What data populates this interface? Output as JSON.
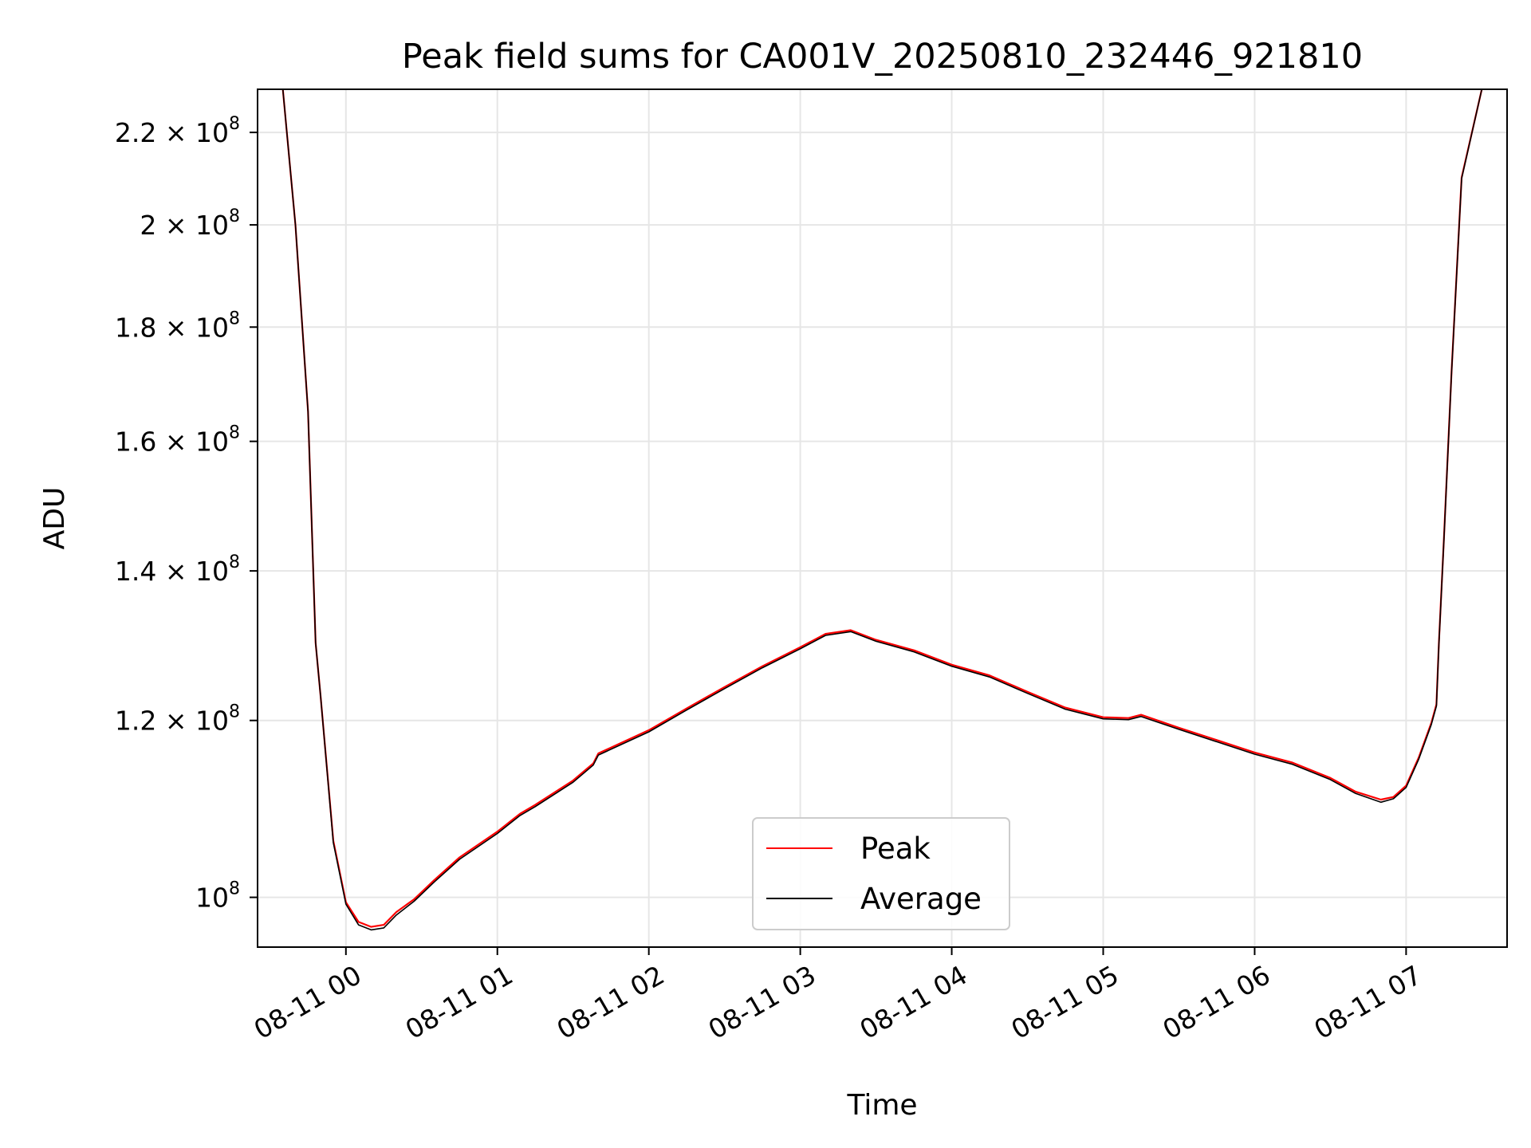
{
  "chart_data": {
    "type": "line",
    "title": "Peak field sums for CA001V_20250810_232446_921810",
    "xlabel": "Time",
    "ylabel": "ADU",
    "y_scale": "log",
    "grid": true,
    "legend_position": "lower-center",
    "x_range": [
      "2025-08-10 23:25",
      "2025-08-11 07:40"
    ],
    "ylim": [
      95000000,
      230000000
    ],
    "x_ticks": [
      "08-11 00",
      "08-11 01",
      "08-11 02",
      "08-11 03",
      "08-11 04",
      "08-11 05",
      "08-11 06",
      "08-11 07"
    ],
    "x_tick_times": [
      "2025-08-11 00:00",
      "2025-08-11 01:00",
      "2025-08-11 02:00",
      "2025-08-11 03:00",
      "2025-08-11 04:00",
      "2025-08-11 05:00",
      "2025-08-11 06:00",
      "2025-08-11 07:00"
    ],
    "y_ticks": [
      {
        "value": 100000000,
        "mantissa": "",
        "exp": "8"
      },
      {
        "value": 120000000,
        "mantissa": "1.2",
        "exp": "8"
      },
      {
        "value": 140000000,
        "mantissa": "1.4",
        "exp": "8"
      },
      {
        "value": 160000000,
        "mantissa": "1.6",
        "exp": "8"
      },
      {
        "value": 180000000,
        "mantissa": "1.8",
        "exp": "8"
      },
      {
        "value": 200000000,
        "mantissa": "2",
        "exp": "8"
      },
      {
        "value": 220000000,
        "mantissa": "2.2",
        "exp": "8"
      }
    ],
    "series": [
      {
        "name": "Peak",
        "color": "#ff0000",
        "x": [
          "2025-08-10 23:35",
          "2025-08-10 23:40",
          "2025-08-10 23:45",
          "2025-08-10 23:48",
          "2025-08-10 23:50",
          "2025-08-10 23:55",
          "2025-08-11 00:00",
          "2025-08-11 00:05",
          "2025-08-11 00:10",
          "2025-08-11 00:15",
          "2025-08-11 00:20",
          "2025-08-11 00:27",
          "2025-08-11 00:35",
          "2025-08-11 00:45",
          "2025-08-11 01:00",
          "2025-08-11 01:09",
          "2025-08-11 01:15",
          "2025-08-11 01:30",
          "2025-08-11 01:38",
          "2025-08-11 01:40",
          "2025-08-11 02:00",
          "2025-08-11 02:15",
          "2025-08-11 02:30",
          "2025-08-11 02:45",
          "2025-08-11 03:00",
          "2025-08-11 03:10",
          "2025-08-11 03:20",
          "2025-08-11 03:30",
          "2025-08-11 03:45",
          "2025-08-11 04:00",
          "2025-08-11 04:15",
          "2025-08-11 04:30",
          "2025-08-11 04:45",
          "2025-08-11 05:00",
          "2025-08-11 05:10",
          "2025-08-11 05:15",
          "2025-08-11 05:30",
          "2025-08-11 05:45",
          "2025-08-11 06:00",
          "2025-08-11 06:15",
          "2025-08-11 06:30",
          "2025-08-11 06:40",
          "2025-08-11 06:50",
          "2025-08-11 06:55",
          "2025-08-11 07:00",
          "2025-08-11 07:05",
          "2025-08-11 07:10",
          "2025-08-11 07:12",
          "2025-08-11 07:13",
          "2025-08-11 07:15",
          "2025-08-11 07:18",
          "2025-08-11 07:22",
          "2025-08-11 07:30"
        ],
        "values": [
          230000000,
          200000000,
          165000000,
          130000000,
          123000000,
          106000000,
          99500000,
          97500000,
          97000000,
          97200000,
          98500000,
          99800000,
          101800000,
          104200000,
          107000000,
          109000000,
          110000000,
          112800000,
          114800000,
          116000000,
          118800000,
          121500000,
          124200000,
          126900000,
          129400000,
          131200000,
          131700000,
          130400000,
          129000000,
          127100000,
          125700000,
          123600000,
          121600000,
          120400000,
          120300000,
          120700000,
          119100000,
          117600000,
          116100000,
          114900000,
          113100000,
          111500000,
          110600000,
          110900000,
          112200000,
          115500000,
          119700000,
          122000000,
          130000000,
          145000000,
          172000000,
          210000000,
          230000000
        ]
      },
      {
        "name": "Average",
        "color": "#000000",
        "x": [
          "2025-08-10 23:35",
          "2025-08-10 23:40",
          "2025-08-10 23:45",
          "2025-08-10 23:48",
          "2025-08-10 23:50",
          "2025-08-10 23:55",
          "2025-08-11 00:00",
          "2025-08-11 00:05",
          "2025-08-11 00:10",
          "2025-08-11 00:15",
          "2025-08-11 00:20",
          "2025-08-11 00:27",
          "2025-08-11 00:35",
          "2025-08-11 00:45",
          "2025-08-11 01:00",
          "2025-08-11 01:09",
          "2025-08-11 01:15",
          "2025-08-11 01:30",
          "2025-08-11 01:38",
          "2025-08-11 01:40",
          "2025-08-11 02:00",
          "2025-08-11 02:15",
          "2025-08-11 02:30",
          "2025-08-11 02:45",
          "2025-08-11 03:00",
          "2025-08-11 03:10",
          "2025-08-11 03:20",
          "2025-08-11 03:30",
          "2025-08-11 03:45",
          "2025-08-11 04:00",
          "2025-08-11 04:15",
          "2025-08-11 04:30",
          "2025-08-11 04:45",
          "2025-08-11 05:00",
          "2025-08-11 05:10",
          "2025-08-11 05:15",
          "2025-08-11 05:30",
          "2025-08-11 05:45",
          "2025-08-11 06:00",
          "2025-08-11 06:15",
          "2025-08-11 06:30",
          "2025-08-11 06:40",
          "2025-08-11 06:50",
          "2025-08-11 06:55",
          "2025-08-11 07:00",
          "2025-08-11 07:05",
          "2025-08-11 07:10",
          "2025-08-11 07:12",
          "2025-08-11 07:13",
          "2025-08-11 07:15",
          "2025-08-11 07:18",
          "2025-08-11 07:22",
          "2025-08-11 07:30"
        ],
        "values": [
          230000000,
          200000000,
          165000000,
          130000000,
          123000000,
          105800000,
          99300000,
          97200000,
          96700000,
          96900000,
          98200000,
          99600000,
          101600000,
          104000000,
          106800000,
          108800000,
          109800000,
          112600000,
          114600000,
          115800000,
          118600000,
          121300000,
          124000000,
          126700000,
          129200000,
          131000000,
          131500000,
          130200000,
          128800000,
          126900000,
          125500000,
          123400000,
          121400000,
          120200000,
          120100000,
          120500000,
          118900000,
          117400000,
          115900000,
          114700000,
          112900000,
          111300000,
          110300000,
          110700000,
          112000000,
          115300000,
          119500000,
          121800000,
          129800000,
          144800000,
          171800000,
          209800000,
          230000000
        ]
      }
    ]
  }
}
